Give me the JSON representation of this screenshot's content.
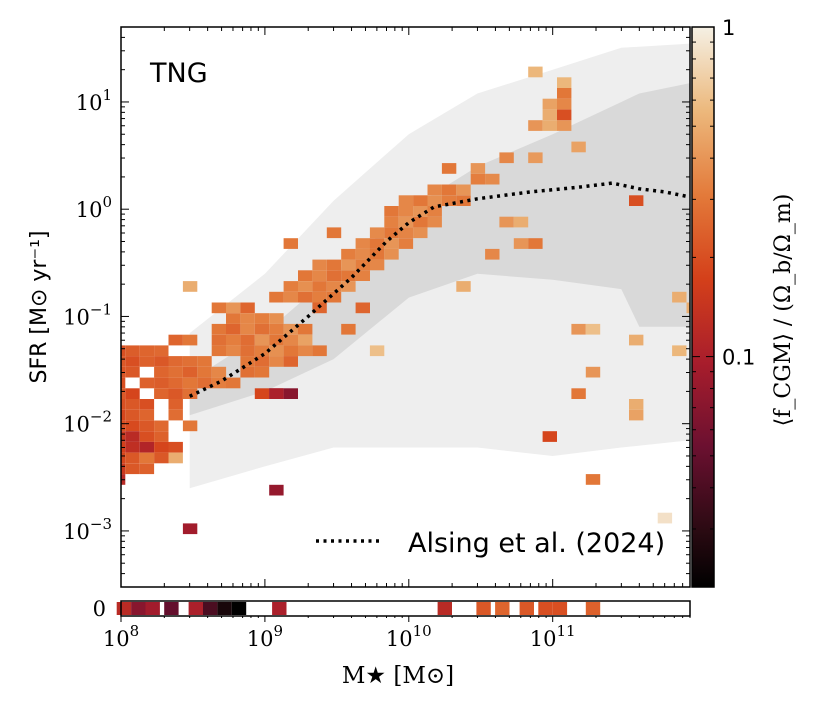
{
  "chart_data": {
    "type": "heatmap",
    "panel_label": "TNG",
    "xlabel": "M★ [M⊙]",
    "ylabel": "SFR [M⊙ yr⁻¹]",
    "colorbar_label": "⟨f_CGM⟩ / (Ω_b/Ω_m)",
    "x_scale": "log",
    "y_scale": "log",
    "xlim": [
      100000000,
      900000000000
    ],
    "ylim": [
      0.0003,
      50
    ],
    "x_ticks": [
      {
        "value": 100000000,
        "mant": "10",
        "exp": "8"
      },
      {
        "value": 1000000000,
        "mant": "10",
        "exp": "9"
      },
      {
        "value": 10000000000,
        "mant": "10",
        "exp": "10"
      },
      {
        "value": 100000000000,
        "mant": "10",
        "exp": "11"
      }
    ],
    "y_ticks": [
      {
        "value": 0.001,
        "mant": "10",
        "exp": "−3"
      },
      {
        "value": 0.01,
        "mant": "10",
        "exp": "−2"
      },
      {
        "value": 0.1,
        "mant": "10",
        "exp": "−1"
      },
      {
        "value": 1,
        "mant": "10",
        "exp": "0"
      },
      {
        "value": 10,
        "mant": "10",
        "exp": "1"
      }
    ],
    "colorbar": {
      "scale": "log",
      "range": [
        0.02,
        1
      ],
      "tick_labels": [
        "1",
        "0.1"
      ],
      "tick_values": [
        1,
        0.1
      ]
    },
    "zero_strip": {
      "label": "0",
      "cells": [
        {
          "logm": 8.02,
          "f": 0.12
        },
        {
          "logm": 8.12,
          "f": 0.07
        },
        {
          "logm": 8.22,
          "f": 0.09
        },
        {
          "logm": 8.35,
          "f": 0.05
        },
        {
          "logm": 8.52,
          "f": 0.1
        },
        {
          "logm": 8.62,
          "f": 0.04
        },
        {
          "logm": 8.72,
          "f": 0.025
        },
        {
          "logm": 8.82,
          "f": 0.02
        },
        {
          "logm": 9.1,
          "f": 0.1
        },
        {
          "logm": 10.25,
          "f": 0.12
        },
        {
          "logm": 10.52,
          "f": 0.22
        },
        {
          "logm": 10.65,
          "f": 0.25
        },
        {
          "logm": 10.82,
          "f": 0.22
        },
        {
          "logm": 10.95,
          "f": 0.2
        },
        {
          "logm": 11.05,
          "f": 0.2
        },
        {
          "logm": 11.28,
          "f": 0.24
        }
      ]
    },
    "series": [
      {
        "name": "Alsing et al. (2024)",
        "style": "dotted",
        "x": [
          300000000,
          500000000,
          1000000000,
          2000000000,
          4000000000,
          7000000000,
          10000000000,
          15000000000,
          30000000000,
          70000000000,
          150000000000,
          260000000000,
          400000000000,
          600000000000,
          900000000000
        ],
        "y": [
          0.018,
          0.025,
          0.045,
          0.1,
          0.23,
          0.5,
          0.75,
          1.05,
          1.25,
          1.45,
          1.6,
          1.75,
          1.55,
          1.45,
          1.3
        ]
      }
    ],
    "bands": [
      {
        "kind": "outer",
        "x": [
          300000000,
          1000000000,
          3000000000,
          10000000000,
          30000000000,
          100000000000,
          300000000000,
          900000000000
        ],
        "y_low": [
          0.0025,
          0.004,
          0.006,
          0.006,
          0.006,
          0.005,
          0.006,
          0.007
        ],
        "y_high": [
          0.07,
          0.25,
          1.2,
          5,
          12,
          20,
          32,
          35
        ]
      },
      {
        "kind": "inner",
        "x": [
          300000000,
          1000000000,
          3000000000,
          10000000000,
          30000000000,
          100000000000,
          300000000000,
          400000000000,
          900000000000
        ],
        "y_low": [
          0.012,
          0.02,
          0.04,
          0.15,
          0.25,
          0.22,
          0.18,
          0.08,
          0.08
        ],
        "y_high": [
          0.025,
          0.07,
          0.25,
          1,
          2.5,
          5,
          10,
          12,
          15
        ]
      }
    ],
    "cells": [
      [
        7.98,
        -1.32,
        0.2
      ],
      [
        8.08,
        -1.32,
        0.23
      ],
      [
        8.18,
        -1.32,
        0.25
      ],
      [
        8.28,
        -1.32,
        0.26
      ],
      [
        8.38,
        -1.22,
        0.25
      ],
      [
        8.48,
        -1.22,
        0.3
      ],
      [
        7.98,
        -1.42,
        0.22
      ],
      [
        8.08,
        -1.42,
        0.2
      ],
      [
        8.18,
        -1.42,
        0.24
      ],
      [
        8.28,
        -1.42,
        0.22
      ],
      [
        8.38,
        -1.42,
        0.26
      ],
      [
        8.48,
        -1.42,
        0.28
      ],
      [
        8.58,
        -1.42,
        0.3
      ],
      [
        7.98,
        -1.52,
        0.21
      ],
      [
        8.08,
        -1.52,
        0.22
      ],
      [
        8.28,
        -1.52,
        0.25
      ],
      [
        8.38,
        -1.52,
        0.28
      ],
      [
        8.48,
        -1.52,
        0.24
      ],
      [
        8.58,
        -1.52,
        0.3
      ],
      [
        8.68,
        -1.52,
        0.35
      ],
      [
        7.98,
        -1.62,
        0.2
      ],
      [
        8.18,
        -1.62,
        0.24
      ],
      [
        8.28,
        -1.62,
        0.23
      ],
      [
        8.38,
        -1.62,
        0.26
      ],
      [
        8.48,
        -1.62,
        0.3
      ],
      [
        8.58,
        -1.62,
        0.27
      ],
      [
        8.68,
        -1.62,
        0.32
      ],
      [
        8.78,
        -1.62,
        0.3
      ],
      [
        7.98,
        -1.72,
        0.22
      ],
      [
        8.08,
        -1.72,
        0.18
      ],
      [
        8.28,
        -1.72,
        0.25
      ],
      [
        8.38,
        -1.72,
        0.22
      ],
      [
        8.48,
        -1.72,
        0.28
      ],
      [
        7.98,
        -1.82,
        0.2
      ],
      [
        8.08,
        -1.82,
        0.22
      ],
      [
        8.18,
        -1.82,
        0.2
      ],
      [
        8.38,
        -1.82,
        0.24
      ],
      [
        7.98,
        -1.92,
        0.18
      ],
      [
        8.08,
        -1.92,
        0.22
      ],
      [
        8.18,
        -1.92,
        0.25
      ],
      [
        8.38,
        -1.92,
        0.27
      ],
      [
        7.98,
        -2.02,
        0.2
      ],
      [
        8.08,
        -2.02,
        0.19
      ],
      [
        8.18,
        -2.02,
        0.22
      ],
      [
        8.28,
        -2.02,
        0.26
      ],
      [
        8.48,
        -2.02,
        0.3
      ],
      [
        7.98,
        -2.12,
        0.15
      ],
      [
        8.08,
        -2.12,
        0.12
      ],
      [
        8.18,
        -2.12,
        0.2
      ],
      [
        8.28,
        -2.12,
        0.24
      ],
      [
        7.98,
        -2.22,
        0.17
      ],
      [
        8.08,
        -2.22,
        0.13
      ],
      [
        8.18,
        -2.22,
        0.11
      ],
      [
        8.28,
        -2.22,
        0.18
      ],
      [
        8.38,
        -2.22,
        0.2
      ],
      [
        7.98,
        -2.32,
        0.18
      ],
      [
        8.08,
        -2.32,
        0.22
      ],
      [
        8.18,
        -2.32,
        0.3
      ],
      [
        8.28,
        -2.32,
        0.22
      ],
      [
        8.38,
        -2.32,
        0.5
      ],
      [
        7.98,
        -2.42,
        0.15
      ],
      [
        8.08,
        -2.42,
        0.22
      ],
      [
        8.18,
        -2.42,
        0.24
      ],
      [
        7.98,
        -2.52,
        0.12
      ],
      [
        8.48,
        -0.72,
        0.5
      ],
      [
        8.68,
        -0.92,
        0.3
      ],
      [
        8.78,
        -0.92,
        0.4
      ],
      [
        8.88,
        -0.92,
        0.25
      ],
      [
        8.78,
        -1.02,
        0.3
      ],
      [
        8.88,
        -1.02,
        0.35
      ],
      [
        8.98,
        -1.02,
        0.32
      ],
      [
        9.08,
        -1.02,
        0.38
      ],
      [
        8.68,
        -1.12,
        0.3
      ],
      [
        8.78,
        -1.12,
        0.25
      ],
      [
        8.88,
        -1.12,
        0.35
      ],
      [
        8.98,
        -1.12,
        0.28
      ],
      [
        9.08,
        -1.12,
        0.32
      ],
      [
        9.18,
        -1.12,
        0.4
      ],
      [
        9.28,
        -1.12,
        0.3
      ],
      [
        8.68,
        -1.22,
        0.28
      ],
      [
        8.78,
        -1.22,
        0.32
      ],
      [
        8.88,
        -1.22,
        0.27
      ],
      [
        8.98,
        -1.22,
        0.4
      ],
      [
        9.08,
        -1.22,
        0.3
      ],
      [
        9.18,
        -1.22,
        0.35
      ],
      [
        9.28,
        -1.22,
        0.45
      ],
      [
        8.68,
        -1.32,
        0.3
      ],
      [
        8.78,
        -1.32,
        0.35
      ],
      [
        8.88,
        -1.32,
        0.28
      ],
      [
        8.98,
        -1.32,
        0.32
      ],
      [
        9.08,
        -1.32,
        0.38
      ],
      [
        9.18,
        -1.32,
        0.3
      ],
      [
        9.28,
        -1.32,
        0.35
      ],
      [
        9.38,
        -1.32,
        0.3
      ],
      [
        8.88,
        -1.42,
        0.3
      ],
      [
        8.98,
        -1.42,
        0.27
      ],
      [
        9.08,
        -1.42,
        0.35
      ],
      [
        9.18,
        -1.42,
        0.25
      ],
      [
        8.88,
        -1.52,
        0.28
      ],
      [
        8.98,
        -1.52,
        0.3
      ],
      [
        8.98,
        -1.72,
        0.18
      ],
      [
        9.08,
        -1.72,
        0.1
      ],
      [
        9.18,
        -1.72,
        0.07
      ],
      [
        9.08,
        -0.82,
        0.3
      ],
      [
        9.18,
        -0.82,
        0.35
      ],
      [
        9.28,
        -0.82,
        0.28
      ],
      [
        9.38,
        -0.82,
        0.32
      ],
      [
        9.48,
        -0.82,
        0.3
      ],
      [
        9.18,
        -0.72,
        0.32
      ],
      [
        9.28,
        -0.72,
        0.38
      ],
      [
        9.38,
        -0.72,
        0.3
      ],
      [
        9.48,
        -0.72,
        0.35
      ],
      [
        9.58,
        -0.72,
        0.4
      ],
      [
        9.28,
        -0.62,
        0.3
      ],
      [
        9.38,
        -0.62,
        0.35
      ],
      [
        9.48,
        -0.62,
        0.28
      ],
      [
        9.58,
        -0.62,
        0.3
      ],
      [
        9.68,
        -0.62,
        0.33
      ],
      [
        9.38,
        -0.52,
        0.35
      ],
      [
        9.48,
        -0.52,
        0.3
      ],
      [
        9.58,
        -0.52,
        0.4
      ],
      [
        9.68,
        -0.52,
        0.32
      ],
      [
        9.78,
        -0.52,
        0.35
      ],
      [
        9.58,
        -0.42,
        0.32
      ],
      [
        9.68,
        -0.42,
        0.36
      ],
      [
        9.78,
        -0.42,
        0.3
      ],
      [
        9.88,
        -0.42,
        0.38
      ],
      [
        9.18,
        -0.32,
        0.3
      ],
      [
        9.68,
        -0.32,
        0.35
      ],
      [
        9.78,
        -0.32,
        0.3
      ],
      [
        9.88,
        -0.32,
        0.4
      ],
      [
        9.98,
        -0.32,
        0.32
      ],
      [
        9.48,
        -0.22,
        0.3
      ],
      [
        9.78,
        -0.22,
        0.36
      ],
      [
        9.88,
        -0.22,
        0.3
      ],
      [
        9.98,
        -0.22,
        0.34
      ],
      [
        10.08,
        -0.22,
        0.38
      ],
      [
        9.88,
        -0.12,
        0.33
      ],
      [
        9.98,
        -0.12,
        0.4
      ],
      [
        10.08,
        -0.12,
        0.3
      ],
      [
        10.18,
        -0.12,
        0.36
      ],
      [
        9.88,
        -0.02,
        0.3
      ],
      [
        9.98,
        -0.02,
        0.35
      ],
      [
        10.08,
        -0.02,
        0.4
      ],
      [
        10.18,
        -0.02,
        0.33
      ],
      [
        9.98,
        0.08,
        0.35
      ],
      [
        10.08,
        0.08,
        0.3
      ],
      [
        10.18,
        0.08,
        0.38
      ],
      [
        10.28,
        0.08,
        0.32
      ],
      [
        10.38,
        0.08,
        0.3
      ],
      [
        10.18,
        0.18,
        0.35
      ],
      [
        10.28,
        0.18,
        0.3
      ],
      [
        10.38,
        0.18,
        0.4
      ],
      [
        10.48,
        0.28,
        0.32
      ],
      [
        10.58,
        0.28,
        0.36
      ],
      [
        10.28,
        0.38,
        0.3
      ],
      [
        10.48,
        0.38,
        0.4
      ],
      [
        10.68,
        0.48,
        0.35
      ],
      [
        10.88,
        0.48,
        0.42
      ],
      [
        11.18,
        0.58,
        0.45
      ],
      [
        10.88,
        0.78,
        0.4
      ],
      [
        10.98,
        0.78,
        0.5
      ],
      [
        11.08,
        0.78,
        0.4
      ],
      [
        10.98,
        0.88,
        0.5
      ],
      [
        11.08,
        0.88,
        0.2
      ],
      [
        10.98,
        0.98,
        0.45
      ],
      [
        11.08,
        0.98,
        0.35
      ],
      [
        11.08,
        1.08,
        0.3
      ],
      [
        11.08,
        1.18,
        0.55
      ],
      [
        10.88,
        1.28,
        0.55
      ],
      [
        10.68,
        -0.12,
        0.4
      ],
      [
        10.78,
        -0.12,
        0.5
      ],
      [
        10.78,
        -0.32,
        0.4
      ],
      [
        10.88,
        -0.32,
        0.3
      ],
      [
        10.58,
        -0.42,
        0.35
      ],
      [
        11.58,
        0.08,
        0.2
      ],
      [
        10.38,
        -0.72,
        0.5
      ],
      [
        9.78,
        -1.32,
        0.6
      ],
      [
        9.58,
        -1.12,
        0.3
      ],
      [
        9.68,
        -0.92,
        0.25
      ],
      [
        9.38,
        -0.92,
        0.25
      ],
      [
        11.88,
        -0.82,
        0.5
      ],
      [
        11.98,
        -0.92,
        0.5
      ],
      [
        11.18,
        -1.12,
        0.4
      ],
      [
        11.28,
        -1.12,
        0.6
      ],
      [
        11.58,
        -1.22,
        0.5
      ],
      [
        11.88,
        -1.32,
        0.55
      ],
      [
        11.28,
        -1.52,
        0.4
      ],
      [
        11.18,
        -1.72,
        0.3
      ],
      [
        11.58,
        -1.92,
        0.45
      ],
      [
        11.58,
        -1.82,
        0.5
      ],
      [
        10.98,
        -2.12,
        0.18
      ],
      [
        11.28,
        -2.52,
        0.3
      ],
      [
        11.78,
        -2.88,
        0.85
      ],
      [
        9.08,
        -2.62,
        0.08
      ],
      [
        8.48,
        -2.98,
        0.09
      ],
      [
        9.08,
        -1.72,
        0.1
      ]
    ]
  }
}
